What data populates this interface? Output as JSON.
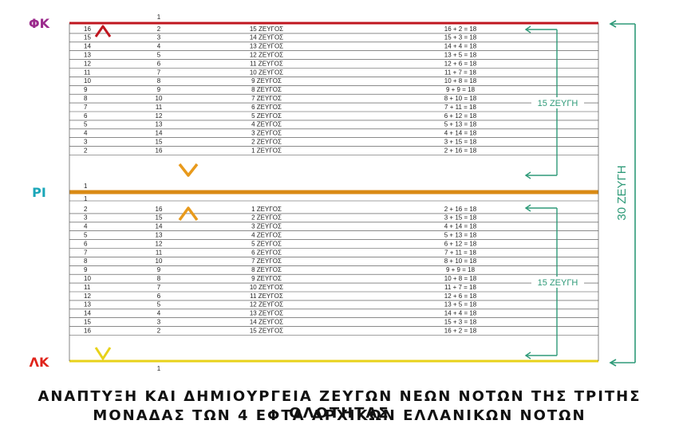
{
  "edge_labels": {
    "top": {
      "text": "ΦΚ",
      "color": "#9b2a8c"
    },
    "middle": {
      "text": "ΡΙ",
      "color": "#1aa6b8"
    },
    "bottom": {
      "text": "ΛΚ",
      "color": "#e0241b"
    }
  },
  "divider_labels": {
    "top": "1",
    "middle_above": "1",
    "middle_below": "1",
    "bottom": "1"
  },
  "upper_rows": [
    {
      "n1": "16",
      "n2": "2",
      "pair": "15 ΖΕΥΓΟΣ",
      "sum": "16 + 2 = 18"
    },
    {
      "n1": "15",
      "n2": "3",
      "pair": "14 ΖΕΥΓΟΣ",
      "sum": "15 + 3 = 18"
    },
    {
      "n1": "14",
      "n2": "4",
      "pair": "13 ΖΕΥΓΟΣ",
      "sum": "14 + 4 = 18"
    },
    {
      "n1": "13",
      "n2": "5",
      "pair": "12 ΖΕΥΓΟΣ",
      "sum": "13 + 5 = 18"
    },
    {
      "n1": "12",
      "n2": "6",
      "pair": "11 ΖΕΥΓΟΣ",
      "sum": "12 + 6 = 18"
    },
    {
      "n1": "11",
      "n2": "7",
      "pair": "10 ΖΕΥΓΟΣ",
      "sum": "11 + 7 = 18"
    },
    {
      "n1": "10",
      "n2": "8",
      "pair": "9 ΖΕΥΓΟΣ",
      "sum": "10 + 8 = 18"
    },
    {
      "n1": "9",
      "n2": "9",
      "pair": "8 ΖΕΥΓΟΣ",
      "sum": "9 + 9 = 18"
    },
    {
      "n1": "8",
      "n2": "10",
      "pair": "7 ΖΕΥΓΟΣ",
      "sum": "8 + 10 = 18"
    },
    {
      "n1": "7",
      "n2": "11",
      "pair": "6 ΖΕΥΓΟΣ",
      "sum": "7 + 11 = 18"
    },
    {
      "n1": "6",
      "n2": "12",
      "pair": "5 ΖΕΥΓΟΣ",
      "sum": "6 + 12 = 18"
    },
    {
      "n1": "5",
      "n2": "13",
      "pair": "4 ΖΕΥΓΟΣ",
      "sum": "5 + 13 = 18"
    },
    {
      "n1": "4",
      "n2": "14",
      "pair": "3 ΖΕΥΓΟΣ",
      "sum": "4 + 14 = 18"
    },
    {
      "n1": "3",
      "n2": "15",
      "pair": "2 ΖΕΥΓΟΣ",
      "sum": "3 + 15 = 18"
    },
    {
      "n1": "2",
      "n2": "16",
      "pair": "1 ΖΕΥΓΟΣ",
      "sum": "2 + 16 = 18"
    }
  ],
  "lower_rows": [
    {
      "n1": "2",
      "n2": "16",
      "pair": "1 ΖΕΥΓΟΣ",
      "sum": "2 + 16 = 18"
    },
    {
      "n1": "3",
      "n2": "15",
      "pair": "2 ΖΕΥΓΟΣ",
      "sum": "3 + 15 = 18"
    },
    {
      "n1": "4",
      "n2": "14",
      "pair": "3 ΖΕΥΓΟΣ",
      "sum": "4 + 14 = 18"
    },
    {
      "n1": "5",
      "n2": "13",
      "pair": "4 ΖΕΥΓΟΣ",
      "sum": "5 + 13 = 18"
    },
    {
      "n1": "6",
      "n2": "12",
      "pair": "5 ΖΕΥΓΟΣ",
      "sum": "6 + 12 = 18"
    },
    {
      "n1": "7",
      "n2": "11",
      "pair": "6 ΖΕΥΓΟΣ",
      "sum": "7 + 11 = 18"
    },
    {
      "n1": "8",
      "n2": "10",
      "pair": "7 ΖΕΥΓΟΣ",
      "sum": "8 + 10 = 18"
    },
    {
      "n1": "9",
      "n2": "9",
      "pair": "8 ΖΕΥΓΟΣ",
      "sum": "9 + 9 = 18"
    },
    {
      "n1": "10",
      "n2": "8",
      "pair": "9 ΖΕΥΓΟΣ",
      "sum": "10 + 8 = 18"
    },
    {
      "n1": "11",
      "n2": "7",
      "pair": "10 ΖΕΥΓΟΣ",
      "sum": "11 + 7 = 18"
    },
    {
      "n1": "12",
      "n2": "6",
      "pair": "11 ΖΕΥΓΟΣ",
      "sum": "12 + 6 = 18"
    },
    {
      "n1": "13",
      "n2": "5",
      "pair": "12 ΖΕΥΓΟΣ",
      "sum": "13 + 5 = 18"
    },
    {
      "n1": "14",
      "n2": "4",
      "pair": "13 ΖΕΥΓΟΣ",
      "sum": "14 + 4 = 18"
    },
    {
      "n1": "15",
      "n2": "3",
      "pair": "14 ΖΕΥΓΟΣ",
      "sum": "15 + 3 = 18"
    },
    {
      "n1": "16",
      "n2": "2",
      "pair": "15 ΖΕΥΓΟΣ",
      "sum": "16 + 2 = 18"
    }
  ],
  "brackets": {
    "upper": "15 ΖΕΥΓΗ",
    "lower": "15 ΖΕΥΓΗ",
    "total": "30 ΖΕΥΓΗ"
  },
  "colors": {
    "top_line": "#c0161f",
    "middle_line": "#d98a14",
    "bottom_line": "#e8d21a",
    "bracket": "#2e9a78",
    "row_line": "#444444"
  },
  "caption": {
    "line1": "ΑΝΑΠΤΥΞΗ ΚΑΙ ΔΗΜΙΟΥΡΓΕΙΑ ΖΕΥΓΩΝ ΝΕΩΝ ΝΟΤΩΝ ΤΗΣ ΤΡΙΤΗΣ ΟΛΟΤΗΤΑΣ",
    "line2": "ΜΟΝΑΔΑΣ ΤΩΝ 4 ΕΦΤΑ ΑΡΧΙΚΩΝ ΕΛΛΑΝΙΚΩΝ ΝΟΤΩΝ"
  }
}
